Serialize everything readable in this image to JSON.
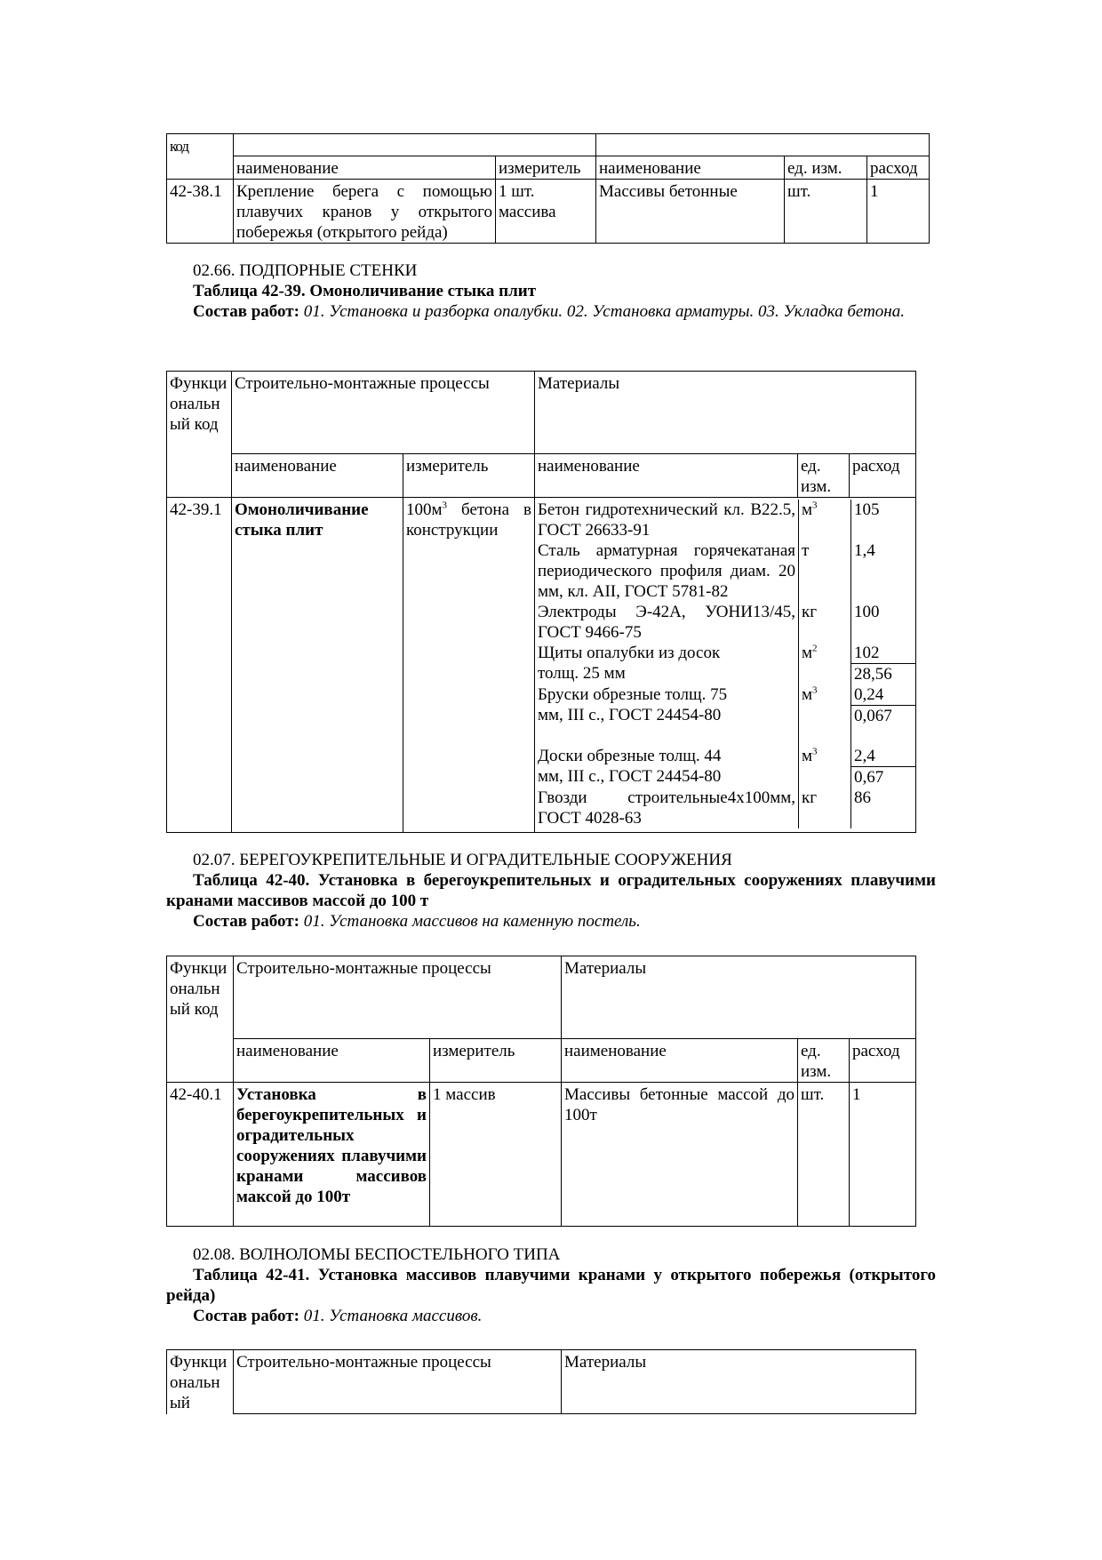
{
  "table1": {
    "col_code": "код",
    "sub_headers": [
      "наименование",
      "измеритель",
      "наименование",
      "ед. изм.",
      "расход"
    ],
    "row": {
      "code": "42-38.1",
      "process": "Крепление берега с помощью плавучих кранов у открытого побережья (открытого рейда)",
      "measure": "1 шт. массива",
      "material": "Массивы бетонные",
      "unit": "шт.",
      "qty": "1"
    }
  },
  "section1": {
    "heading": "02.66. ПОДПОРНЫЕ СТЕНКИ",
    "table_title": "Таблица 42-39. Омоноличивание стыка плит",
    "work_label": "Состав работ:",
    "work_text": " 01. Установка и разборка опалубки. 02. Установка арматуры. 03. Укладка бетона."
  },
  "table2": {
    "col_code": "Функциональный код",
    "col_processes": "Строительно-монтажные процессы",
    "col_materials": "Материалы",
    "sub_headers": [
      "наименование",
      "измеритель",
      "наименование",
      "ед. изм.",
      "расход"
    ],
    "code": "42-39.1",
    "process": "Омоноличивание стыка плит",
    "measure_pre": "100м",
    "measure_sup": "3",
    "measure_post": " бетона в конструкции",
    "materials": [
      {
        "name": "Бетон гидротехнический кл. В22.5, ГОСТ 26633-91",
        "unit": "м",
        "unit_sup": "3",
        "qty": [
          "105"
        ]
      },
      {
        "name": "Сталь арматурная горячекатаная периодического профиля диам. 20 мм, кл. АII, ГОСТ 5781-82",
        "unit": "т",
        "unit_sup": "",
        "qty": [
          "1,4"
        ]
      },
      {
        "name": "Электроды Э-42А, УОНИ13/45, ГОСТ 9466-75",
        "unit": "кг",
        "unit_sup": "",
        "qty": [
          "100"
        ]
      },
      {
        "name": "Щиты опалубки из досок\nтолщ. 25 мм",
        "unit": "м",
        "unit_sup": "2",
        "qty": [
          "102",
          "28,56"
        ]
      },
      {
        "name": "Бруски обрезные толщ. 75\nмм, III с., ГОСТ 24454-80",
        "unit": "м",
        "unit_sup": "3",
        "qty": [
          "0,24",
          "0,067"
        ]
      },
      {
        "name": "Доски обрезные толщ. 44\nмм, III с., ГОСТ 24454-80",
        "unit": "м",
        "unit_sup": "3",
        "qty": [
          "2,4",
          "0,67"
        ]
      },
      {
        "name": "Гвозди строительные4х100мм, ГОСТ 4028-63",
        "unit": "кг",
        "unit_sup": "",
        "qty": [
          "86"
        ]
      }
    ]
  },
  "section2": {
    "heading": "02.07. БЕРЕГОУКРЕПИТЕЛЬНЫЕ И ОГРАДИТЕЛЬНЫЕ СООРУЖЕНИЯ",
    "table_title": "Таблица 42-40. Установка в берегоукрепительных и оградительных сооружениях плавучими кранами массивов массой до 100 т",
    "work_label": "Состав работ:",
    "work_text": " 01. Установка массивов на каменную постель."
  },
  "table3": {
    "col_code": "Функциональный код",
    "col_processes": "Строительно-монтажные процессы",
    "col_materials": "Материалы",
    "sub_headers": [
      "наименование",
      "измеритель",
      "наименование",
      "ед. изм.",
      "расход"
    ],
    "row": {
      "code": "42-40.1",
      "process": "Установка в берегоукрепительных и оградительных сооружениях плавучими кранами массивов максой до 100т",
      "measure": "1 массив",
      "material": "Массивы бетонные массой до 100т",
      "unit": "шт.",
      "qty": "1"
    }
  },
  "section3": {
    "heading": "02.08. ВОЛНОЛОМЫ БЕСПОСТЕЛЬНОГО ТИПА",
    "table_title": "Таблица 42-41. Установка массивов плавучими кранами у открытого побережья (открытого рейда)",
    "work_label": "Состав работ:",
    "work_text": " 01. Установка массивов."
  },
  "table4": {
    "col_code": "Функциональный",
    "col_processes": "Строительно-монтажные процессы",
    "col_materials": "Материалы"
  }
}
